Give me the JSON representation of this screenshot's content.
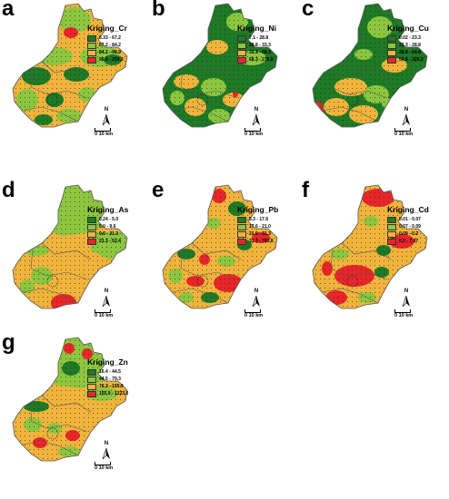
{
  "colors": {
    "dark_green": "#1e7a25",
    "light_green": "#8cc63f",
    "orange": "#f0b43c",
    "red": "#e8262a",
    "outline": "#555555"
  },
  "north_label": "N",
  "scale_label": "0  10 km",
  "panels": [
    {
      "letter": "a",
      "legend_title": "Kriging_Cr",
      "classes": [
        "6.33 - 67.2",
        "67.2 - 84.2",
        "84.2 - 96.9",
        "96.9 - 259.3"
      ]
    },
    {
      "letter": "b",
      "legend_title": "Kriging_Ni",
      "classes": [
        "7.1 - 28.8",
        "28.8 - 33.3",
        "33.3 - 68.3",
        "68.3 - 278.8"
      ]
    },
    {
      "letter": "c",
      "legend_title": "Kriging_Cu",
      "classes": [
        "0.02 - 23.3",
        "23.3 - 28.8",
        "28.8 - 54.8",
        "54.8 - 325.3"
      ]
    },
    {
      "letter": "d",
      "legend_title": "Kriging_As",
      "classes": [
        "0.24 - 5.0",
        "5.0 - 9.6",
        "9.6 - 21.3",
        "21.3 - 52.4"
      ]
    },
    {
      "letter": "e",
      "legend_title": "Kriging_Pb",
      "classes": [
        "5.3 - 17.6",
        "17.6 - 21.0",
        "21.0 - 31.3",
        "31.3 - 783.8"
      ]
    },
    {
      "letter": "f",
      "legend_title": "Kriging_Cd",
      "classes": [
        "0.01 - 0.07",
        "0.07 - 0.09",
        "0.09 - 0.2",
        "0.2 - 7.97"
      ]
    },
    {
      "letter": "g",
      "legend_title": "Kriging_Zn",
      "classes": [
        "16.4 - 44.5",
        "44.5 - 79.3",
        "79.3 - 155.9",
        "155.9 - 1223.0"
      ]
    }
  ]
}
